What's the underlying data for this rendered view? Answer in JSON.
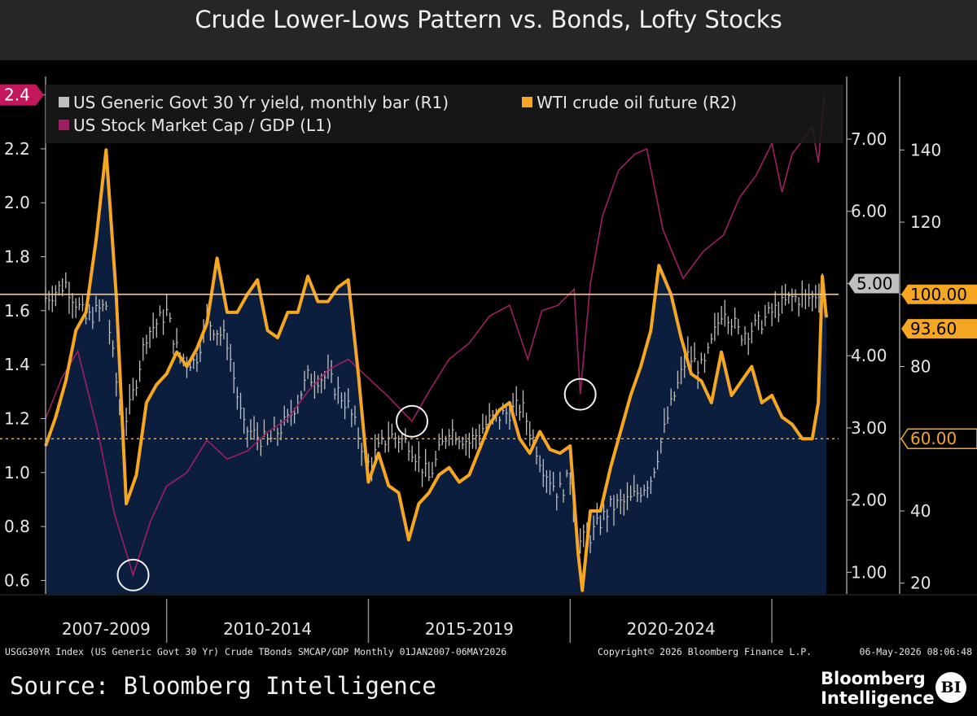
{
  "title": "Crude Lower-Lows Pattern vs. Bonds, Lofty Stocks",
  "source": "Source: Bloomberg Intelligence",
  "logo": {
    "line1": "Bloomberg",
    "line2": "Intelligence",
    "badge": "BI"
  },
  "footnote_left": "USGG30YR Index (US Generic Govt 30 Yr) Crude TBonds SMCAP/GDP Monthly 01JAN2007-06MAY2026",
  "footnote_copyright": "Copyright© 2026 Bloomberg Finance L.P.",
  "footnote_timestamp": "06-May-2026 08:06:48",
  "colors": {
    "yield": "#bfbfbf",
    "oil": "#f5a623",
    "mcap": "#9e1f63",
    "area": "#0c1e3d",
    "ref_line": "#f0c080"
  },
  "chart_data": {
    "type": "line",
    "x_range": [
      2007.0,
      2026.35
    ],
    "x_groups": [
      {
        "label": "2007-2009",
        "from": 2007.0,
        "to": 2010.0
      },
      {
        "label": "2010-2014",
        "from": 2010.0,
        "to": 2015.0
      },
      {
        "label": "2015-2019",
        "from": 2015.0,
        "to": 2020.0
      },
      {
        "label": "2020-2024",
        "from": 2020.0,
        "to": 2025.0
      }
    ],
    "axes": {
      "L1": {
        "range": [
          0.55,
          2.45
        ],
        "ticks": [
          "0.6",
          "0.8",
          "1.0",
          "1.2",
          "1.4",
          "1.6",
          "1.8",
          "2.0",
          "2.2",
          "2.4"
        ]
      },
      "R1": {
        "range": [
          0.7,
          7.8
        ],
        "ticks": [
          "1.00",
          "2.00",
          "3.00",
          "4.00",
          "5.00",
          "6.00",
          "7.00"
        ]
      },
      "R2": {
        "range": [
          17,
          159
        ],
        "ticks": [
          "20",
          "40",
          "60",
          "80",
          "100",
          "120",
          "140"
        ]
      }
    },
    "legend": [
      {
        "name": "US Generic Govt 30 Yr yield, monthly bar (R1)",
        "color": "#bfbfbf"
      },
      {
        "name": "WTI crude oil future (R2)",
        "color": "#f5a623"
      },
      {
        "name": "US Stock Market Cap / GDP (L1)",
        "color": "#9e1f63"
      }
    ],
    "legend_position": "top-left",
    "reference_lines": [
      {
        "axis": "R2",
        "value": 100,
        "style": "solid",
        "label": "100.00"
      },
      {
        "axis": "R2",
        "value": 60,
        "style": "dotted",
        "label": "60.00"
      }
    ],
    "last_value_tags": [
      {
        "axis": "L1",
        "label": "2.4",
        "value": 2.4
      },
      {
        "axis": "R1",
        "label": "5.00",
        "value": 5.0
      },
      {
        "axis": "R2",
        "label": "100.00",
        "value": 100
      },
      {
        "axis": "R2",
        "label": "93.60",
        "value": 93.6
      },
      {
        "axis": "R2",
        "label": "60.00",
        "value": 60
      }
    ],
    "circled_lows": [
      {
        "x": 2009.17,
        "axis": "L1",
        "value": 0.62
      },
      {
        "x": 2016.08,
        "axis": "L1",
        "value": 1.19
      },
      {
        "x": 2020.25,
        "axis": "L1",
        "value": 1.29
      }
    ],
    "series": [
      {
        "name": "WTI crude oil future",
        "axis": "R2",
        "x": [
          2007.0,
          2007.25,
          2007.5,
          2007.75,
          2008.0,
          2008.25,
          2008.5,
          2008.75,
          2009.0,
          2009.25,
          2009.5,
          2009.75,
          2010.0,
          2010.25,
          2010.5,
          2010.75,
          2011.0,
          2011.25,
          2011.5,
          2011.75,
          2012.0,
          2012.25,
          2012.5,
          2012.75,
          2013.0,
          2013.25,
          2013.5,
          2013.75,
          2014.0,
          2014.25,
          2014.5,
          2014.75,
          2015.0,
          2015.25,
          2015.5,
          2015.75,
          2016.0,
          2016.25,
          2016.5,
          2016.75,
          2017.0,
          2017.25,
          2017.5,
          2017.75,
          2018.0,
          2018.25,
          2018.5,
          2018.75,
          2019.0,
          2019.25,
          2019.5,
          2019.75,
          2020.0,
          2020.2,
          2020.3,
          2020.5,
          2020.75,
          2021.0,
          2021.25,
          2021.5,
          2021.75,
          2022.0,
          2022.2,
          2022.5,
          2022.75,
          2023.0,
          2023.25,
          2023.5,
          2023.75,
          2024.0,
          2024.25,
          2024.5,
          2024.75,
          2025.0,
          2025.25,
          2025.5,
          2025.75,
          2026.0,
          2026.15,
          2026.25,
          2026.35
        ],
        "y": [
          58,
          66,
          76,
          90,
          95,
          115,
          140,
          100,
          42,
          50,
          70,
          75,
          78,
          84,
          80,
          85,
          92,
          110,
          95,
          95,
          100,
          104,
          90,
          88,
          95,
          95,
          105,
          98,
          98,
          102,
          104,
          78,
          48,
          56,
          47,
          45,
          32,
          42,
          45,
          50,
          52,
          48,
          50,
          57,
          64,
          68,
          70,
          60,
          56,
          62,
          57,
          56,
          58,
          28,
          18,
          40,
          40,
          52,
          62,
          72,
          80,
          90,
          108,
          100,
          88,
          78,
          76,
          70,
          84,
          72,
          76,
          80,
          70,
          72,
          66,
          64,
          60,
          60,
          70,
          105,
          93.6
        ]
      },
      {
        "name": "US Stock Market Cap / GDP",
        "axis": "L1",
        "x": [
          2007.0,
          2007.4,
          2007.8,
          2008.3,
          2008.7,
          2009.17,
          2009.6,
          2010.0,
          2010.5,
          2011.0,
          2011.5,
          2012.0,
          2012.5,
          2013.0,
          2013.5,
          2014.0,
          2014.5,
          2015.0,
          2015.5,
          2016.08,
          2016.5,
          2017.0,
          2017.5,
          2018.0,
          2018.5,
          2018.95,
          2019.3,
          2019.7,
          2020.1,
          2020.25,
          2020.5,
          2020.8,
          2021.2,
          2021.6,
          2021.9,
          2022.3,
          2022.8,
          2023.3,
          2023.8,
          2024.2,
          2024.6,
          2025.0,
          2025.25,
          2025.5,
          2026.0,
          2026.15,
          2026.3
        ],
        "y": [
          1.2,
          1.35,
          1.45,
          1.15,
          0.85,
          0.62,
          0.82,
          0.95,
          1.0,
          1.12,
          1.05,
          1.08,
          1.15,
          1.2,
          1.3,
          1.38,
          1.42,
          1.35,
          1.28,
          1.19,
          1.3,
          1.42,
          1.48,
          1.58,
          1.62,
          1.42,
          1.6,
          1.62,
          1.68,
          1.29,
          1.7,
          1.95,
          2.12,
          2.18,
          2.2,
          1.9,
          1.72,
          1.82,
          1.88,
          2.02,
          2.1,
          2.22,
          2.04,
          2.18,
          2.28,
          2.15,
          2.4
        ]
      },
      {
        "name": "US Generic Govt 30 Yr yield",
        "axis": "R1",
        "x": [
          2007.0,
          2007.5,
          2008.0,
          2008.5,
          2008.9,
          2009.1,
          2009.5,
          2010.0,
          2010.3,
          2010.7,
          2011.0,
          2011.5,
          2011.9,
          2012.5,
          2013.0,
          2013.5,
          2014.0,
          2014.5,
          2015.0,
          2015.5,
          2016.0,
          2016.5,
          2017.0,
          2017.5,
          2018.0,
          2018.8,
          2019.3,
          2019.7,
          2020.0,
          2020.2,
          2020.5,
          2021.0,
          2021.5,
          2022.0,
          2022.5,
          2022.9,
          2023.3,
          2023.8,
          2024.2,
          2024.6,
          2025.0,
          2025.5,
          2026.0,
          2026.3
        ],
        "y": [
          4.8,
          5.0,
          4.5,
          4.7,
          3.0,
          3.3,
          4.3,
          4.6,
          4.0,
          3.9,
          4.5,
          4.2,
          3.0,
          2.8,
          3.1,
          3.7,
          3.7,
          3.3,
          2.5,
          2.9,
          2.8,
          2.3,
          3.0,
          2.8,
          3.1,
          3.3,
          2.5,
          2.1,
          2.3,
          1.4,
          1.5,
          1.9,
          2.0,
          2.3,
          3.3,
          4.0,
          3.8,
          4.7,
          4.3,
          4.4,
          4.6,
          4.8,
          4.8,
          5.0
        ]
      }
    ]
  }
}
